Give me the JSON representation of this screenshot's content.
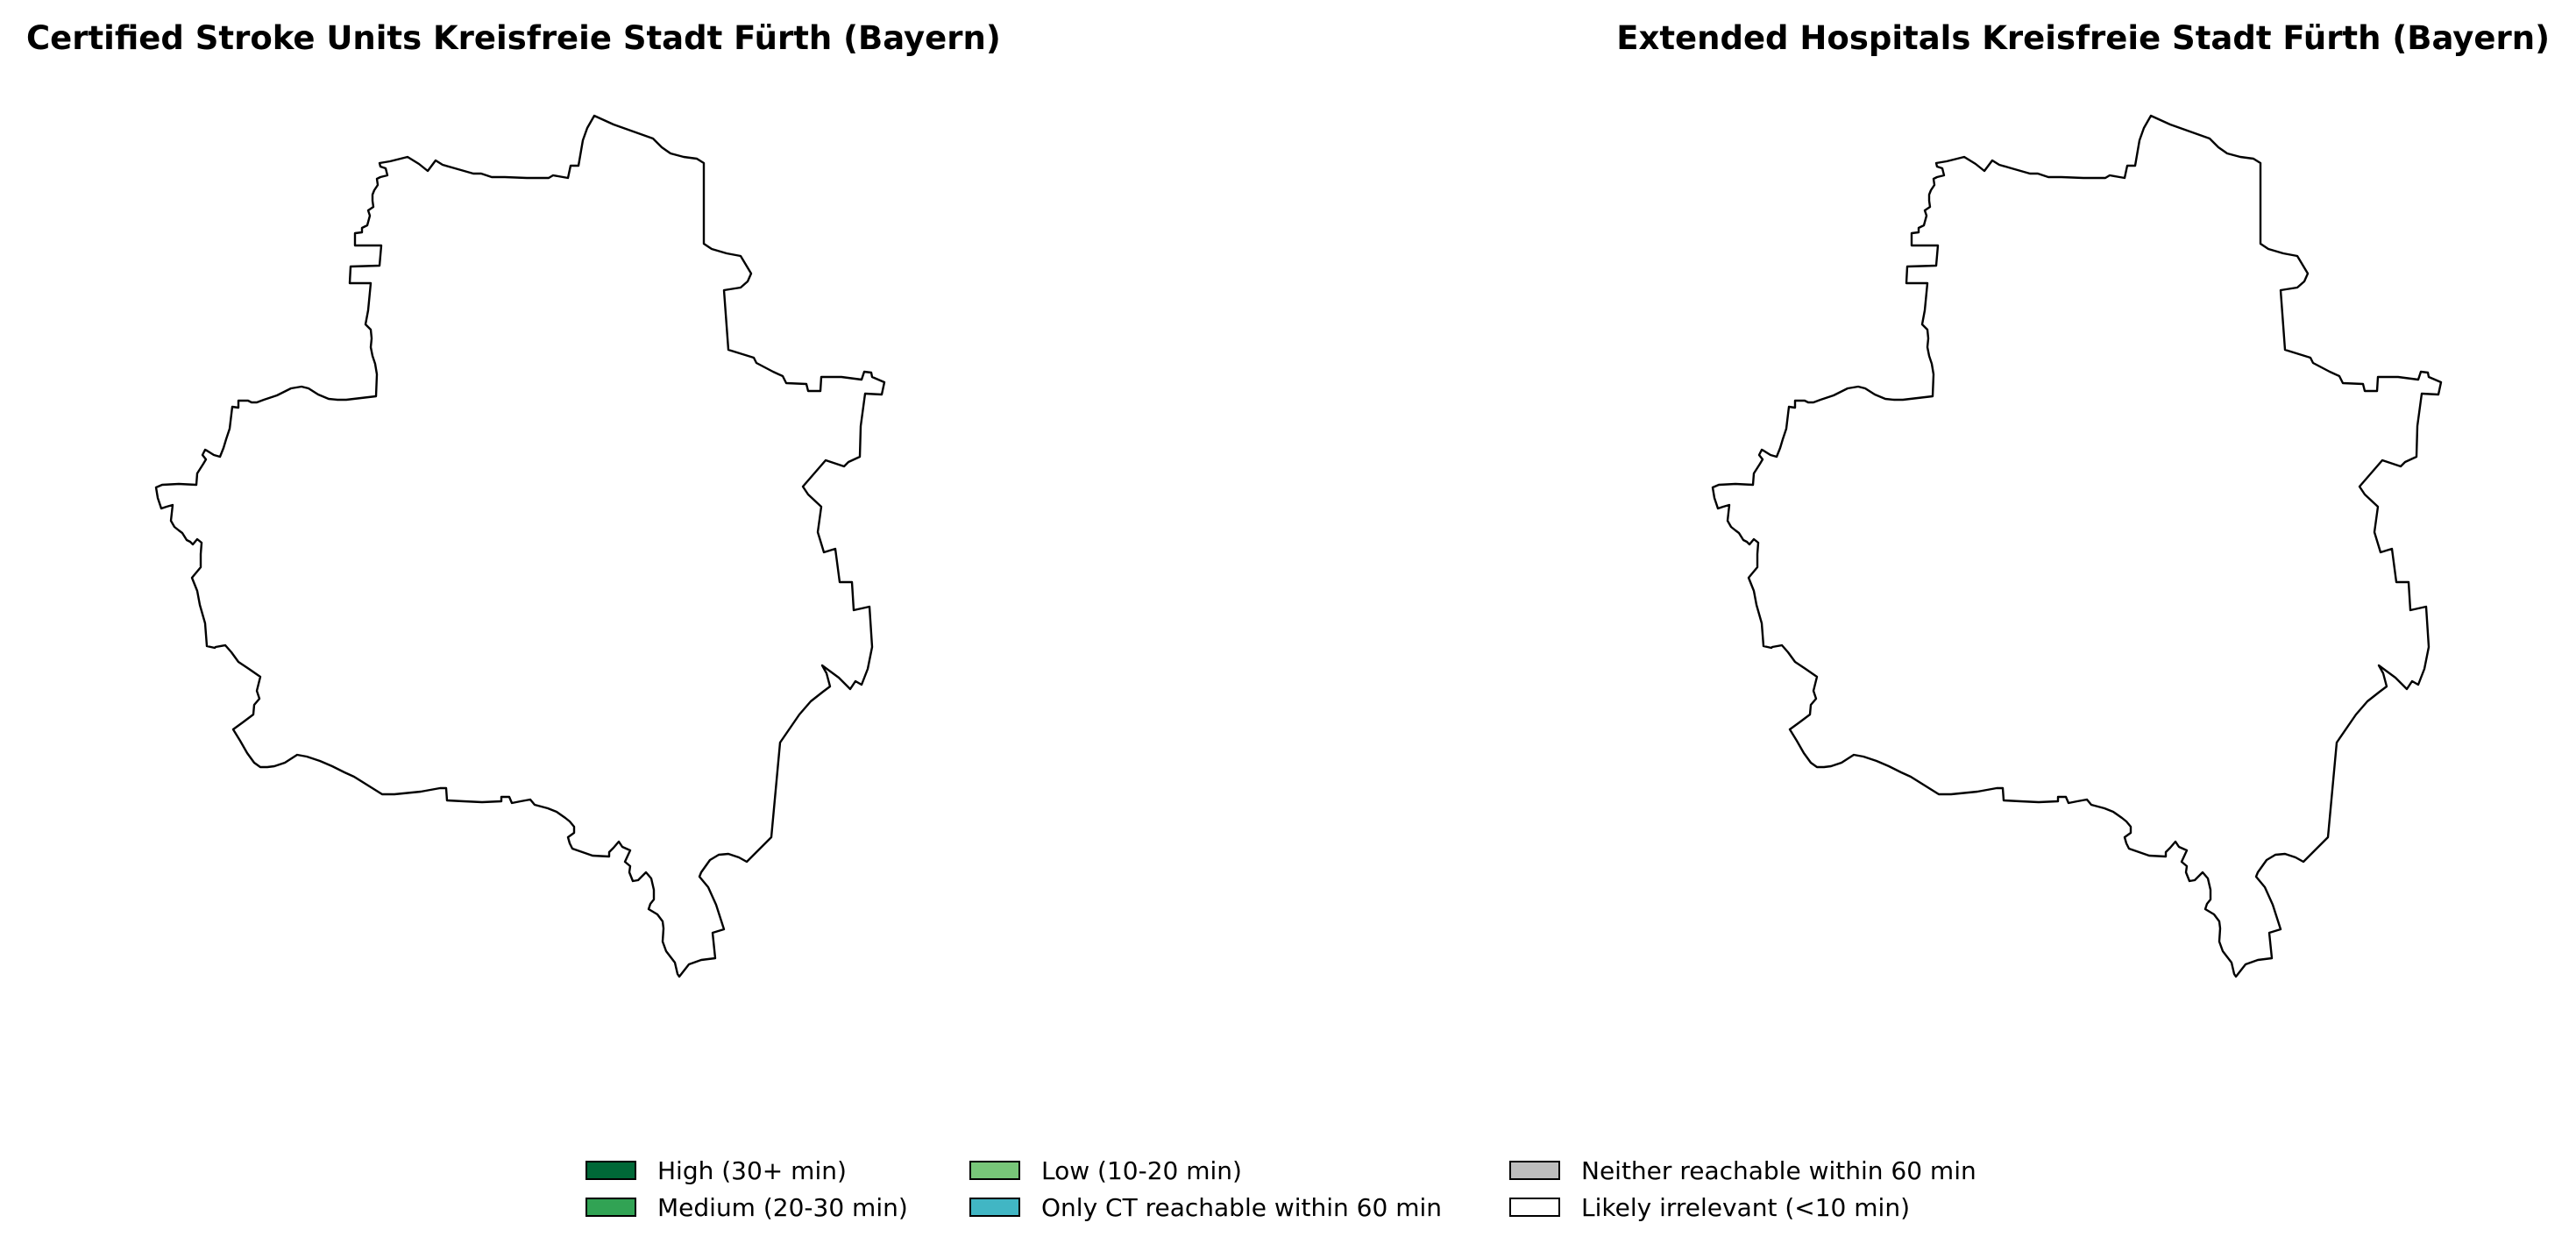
{
  "panels": [
    {
      "title": "Certified Stroke Units Kreisfreie Stadt Fürth (Bayern)",
      "region": "Kreisfreie Stadt Fürth (Bayern)",
      "fill_color": "#ffffff",
      "outline_color": "#000000"
    },
    {
      "title": "Extended Hospitals Kreisfreie Stadt Fürth (Bayern)",
      "region": "Kreisfreie Stadt Fürth (Bayern)",
      "fill_color": "#ffffff",
      "outline_color": "#000000"
    }
  ],
  "legend": {
    "placement": "bottom-center",
    "columns": 3,
    "items": [
      {
        "label": "High (30+ min)",
        "color": "#006837"
      },
      {
        "label": "Medium (20-30 min)",
        "color": "#31a354"
      },
      {
        "label": "Low (10-20 min)",
        "color": "#78c679"
      },
      {
        "label": "Only CT reachable within 60 min",
        "color": "#41b6c4"
      },
      {
        "label": "Neither reachable within 60 min",
        "color": "#bdbdbd"
      },
      {
        "label": "Likely irrelevant (<10 min)",
        "color": "#ffffff"
      }
    ]
  }
}
